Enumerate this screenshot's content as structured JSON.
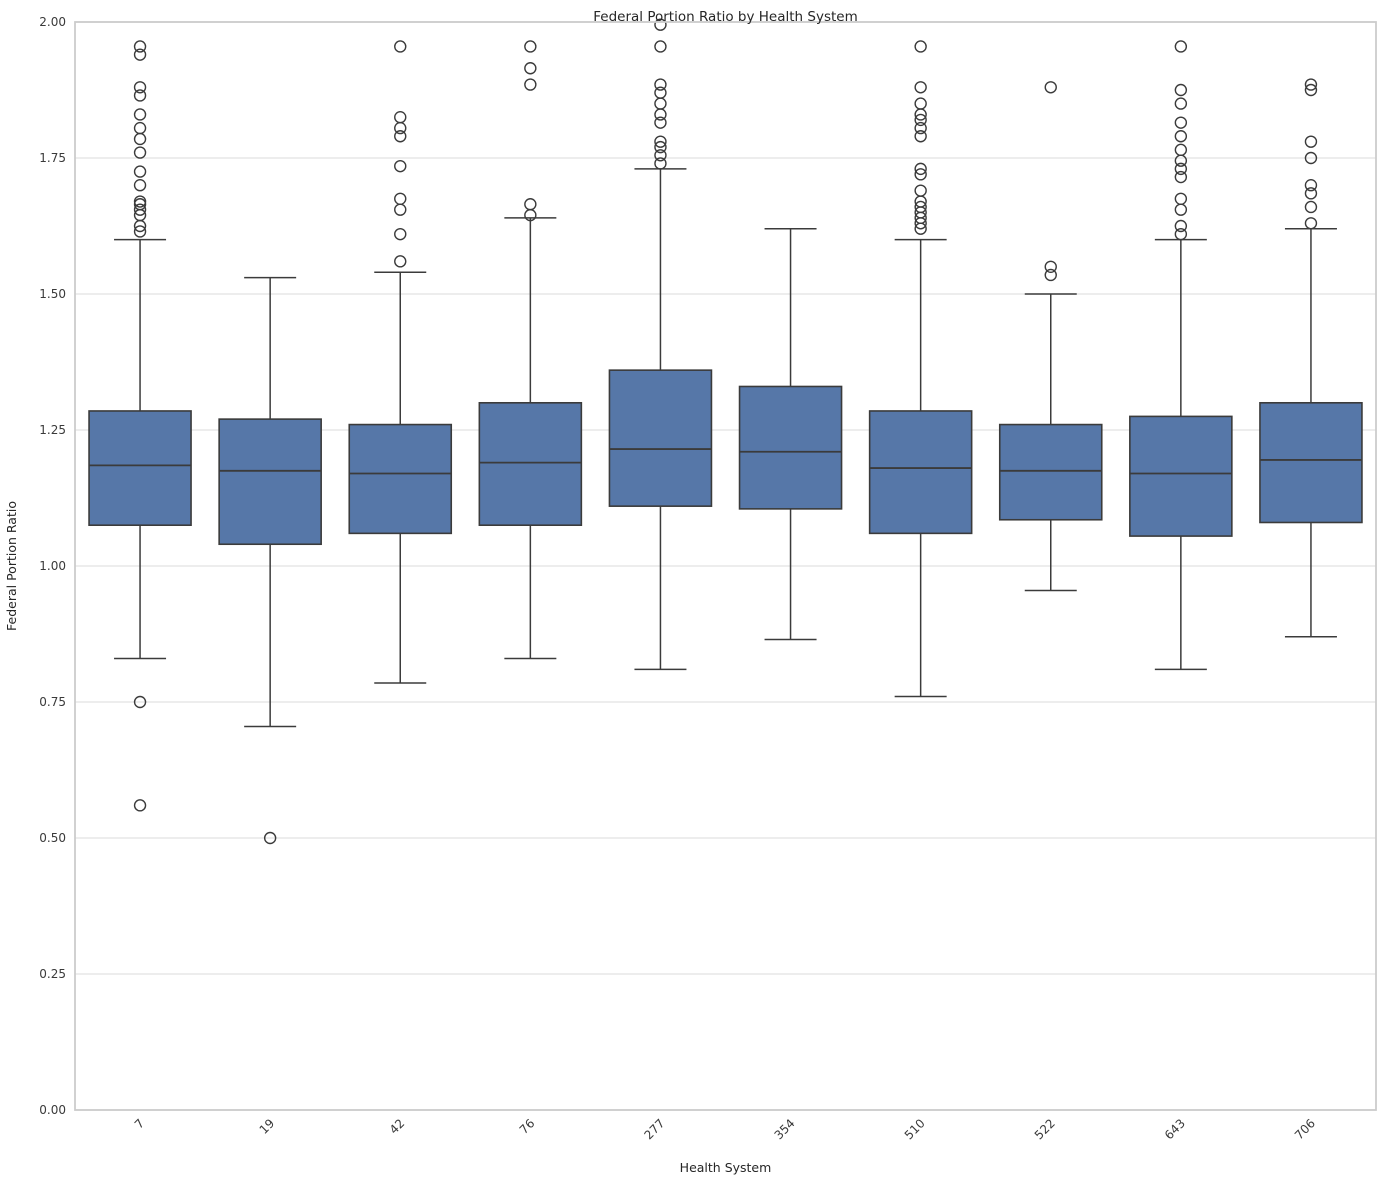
{
  "chart_data": {
    "type": "box",
    "title": "Federal Portion Ratio by Health System",
    "xlabel": "Health System",
    "ylabel": "Federal Portion Ratio",
    "ylim": [
      0.0,
      2.0
    ],
    "yticks": [
      0.0,
      0.25,
      0.5,
      0.75,
      1.0,
      1.25,
      1.5,
      1.75,
      2.0
    ],
    "ytick_labels": [
      "0.00",
      "0.25",
      "0.50",
      "0.75",
      "1.00",
      "1.25",
      "1.50",
      "1.75",
      "2.00"
    ],
    "grid": "horizontal",
    "legend": "none",
    "x_tick_rotation_deg": 45,
    "colors": {
      "box_fill": "#5677A8",
      "box_edge": "#3B3B3B",
      "whisker": "#3B3B3B",
      "median": "#3B3B3B",
      "outlier_stroke": "#3B3B3B",
      "gridline": "#E2E2E2",
      "spine": "#CCCCCC",
      "text": "#262626",
      "tick_text": "#3A3A3A",
      "background": "#FFFFFF"
    },
    "categories": [
      "7",
      "19",
      "42",
      "76",
      "277",
      "354",
      "510",
      "522",
      "643",
      "706"
    ],
    "boxes": [
      {
        "category": "7",
        "whisker_low": 0.83,
        "q1": 1.075,
        "median": 1.185,
        "q3": 1.285,
        "whisker_high": 1.6,
        "outliers": [
          0.56,
          0.75,
          1.615,
          1.625,
          1.645,
          1.655,
          1.665,
          1.67,
          1.7,
          1.725,
          1.76,
          1.785,
          1.805,
          1.83,
          1.865,
          1.88,
          1.94,
          1.955
        ]
      },
      {
        "category": "19",
        "whisker_low": 0.705,
        "q1": 1.04,
        "median": 1.175,
        "q3": 1.27,
        "whisker_high": 1.53,
        "outliers": [
          0.5
        ]
      },
      {
        "category": "42",
        "whisker_low": 0.785,
        "q1": 1.06,
        "median": 1.17,
        "q3": 1.26,
        "whisker_high": 1.54,
        "outliers": [
          1.56,
          1.61,
          1.655,
          1.675,
          1.735,
          1.79,
          1.805,
          1.825,
          1.955
        ]
      },
      {
        "category": "76",
        "whisker_low": 0.83,
        "q1": 1.075,
        "median": 1.19,
        "q3": 1.3,
        "whisker_high": 1.64,
        "outliers": [
          1.645,
          1.665,
          1.885,
          1.915,
          1.955
        ]
      },
      {
        "category": "277",
        "whisker_low": 0.81,
        "q1": 1.11,
        "median": 1.215,
        "q3": 1.36,
        "whisker_high": 1.73,
        "outliers": [
          1.74,
          1.755,
          1.77,
          1.78,
          1.815,
          1.83,
          1.85,
          1.87,
          1.885,
          1.955,
          1.995
        ]
      },
      {
        "category": "354",
        "whisker_low": 0.865,
        "q1": 1.105,
        "median": 1.21,
        "q3": 1.33,
        "whisker_high": 1.62,
        "outliers": []
      },
      {
        "category": "510",
        "whisker_low": 0.76,
        "q1": 1.06,
        "median": 1.18,
        "q3": 1.285,
        "whisker_high": 1.6,
        "outliers": [
          1.62,
          1.63,
          1.64,
          1.65,
          1.66,
          1.67,
          1.69,
          1.72,
          1.73,
          1.79,
          1.805,
          1.82,
          1.83,
          1.85,
          1.88,
          1.955
        ]
      },
      {
        "category": "522",
        "whisker_low": 0.955,
        "q1": 1.085,
        "median": 1.175,
        "q3": 1.26,
        "whisker_high": 1.5,
        "outliers": [
          1.535,
          1.55,
          1.88
        ]
      },
      {
        "category": "643",
        "whisker_low": 0.81,
        "q1": 1.055,
        "median": 1.17,
        "q3": 1.275,
        "whisker_high": 1.6,
        "outliers": [
          1.61,
          1.625,
          1.655,
          1.675,
          1.715,
          1.73,
          1.745,
          1.765,
          1.79,
          1.815,
          1.85,
          1.875,
          1.955
        ]
      },
      {
        "category": "706",
        "whisker_low": 0.87,
        "q1": 1.08,
        "median": 1.195,
        "q3": 1.3,
        "whisker_high": 1.62,
        "outliers": [
          1.63,
          1.66,
          1.685,
          1.7,
          1.75,
          1.78,
          1.875,
          1.885
        ]
      }
    ]
  }
}
